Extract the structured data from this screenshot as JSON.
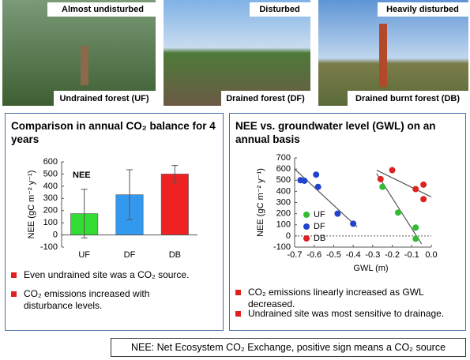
{
  "photos": [
    {
      "caption_top": "Almost undisturbed",
      "caption_bottom": "Undrained forest (UF)"
    },
    {
      "caption_top": "Disturbed",
      "caption_bottom": "Drained forest (DF)"
    },
    {
      "caption_top": "Heavily disturbed",
      "caption_bottom": "Drained burnt forest (DB)"
    }
  ],
  "panels": [
    {
      "title": "Comparison in annual CO₂ balance for 4 years",
      "bullets": [
        "Even undrained site was a CO₂ source.",
        "CO₂ emissions increased with disturbance levels."
      ]
    },
    {
      "title": "NEE vs. groundwater level (GWL) on an annual basis",
      "bullets": [
        "CO₂ emissions linearly increased as GWL decreased.",
        "Undrained site was most sensitive to drainage."
      ]
    }
  ],
  "chart_data": [
    {
      "type": "bar",
      "ylabel": "NEE (gC m⁻² y⁻¹)",
      "label": "NEE",
      "categories": [
        "UF",
        "DF",
        "DB"
      ],
      "values": [
        175,
        330,
        500
      ],
      "errors": [
        200,
        205,
        70
      ],
      "colors": [
        "#33dd33",
        "#3399ee",
        "#ee2222"
      ],
      "ylim": [
        -100,
        600
      ],
      "yticks": [
        -100,
        0,
        100,
        200,
        300,
        400,
        500,
        600
      ]
    },
    {
      "type": "scatter",
      "ylabel": "NEE (gC m⁻² y⁻¹)",
      "xlabel": "GWL (m)",
      "xlim": [
        -0.7,
        0
      ],
      "ylim": [
        -100,
        700
      ],
      "xticks": [
        -0.7,
        -0.6,
        -0.5,
        -0.4,
        -0.3,
        -0.2,
        -0.1,
        {
          "value": 0,
          "label": "0.0"
        }
      ],
      "yticks": [
        -100,
        0,
        100,
        200,
        300,
        400,
        500,
        600,
        700
      ],
      "reference_line": 0,
      "series": [
        {
          "name": "UF",
          "color": "#33bb33",
          "x": [
            -0.25,
            -0.17,
            -0.08,
            -0.08
          ],
          "y": [
            440,
            210,
            75,
            -25
          ]
        },
        {
          "name": "DF",
          "color": "#2244cc",
          "x": [
            -0.67,
            -0.65,
            -0.59,
            -0.58,
            -0.48,
            -0.4
          ],
          "y": [
            500,
            495,
            550,
            440,
            200,
            110
          ]
        },
        {
          "name": "DB",
          "color": "#dd2222",
          "x": [
            -0.26,
            -0.2,
            -0.08,
            -0.04,
            -0.04
          ],
          "y": [
            510,
            590,
            420,
            460,
            330
          ]
        }
      ],
      "trend_lines": [
        {
          "x": [
            -0.7,
            -0.38
          ],
          "y": [
            600,
            80
          ]
        },
        {
          "x": [
            -0.28,
            -0.05
          ],
          "y": [
            560,
            -70
          ]
        },
        {
          "x": [
            -0.28,
            0
          ],
          "y": [
            590,
            350
          ]
        }
      ]
    }
  ],
  "footnote": "NEE: Net Ecosystem CO₂ Exchange, positive sign means a CO₂ source"
}
